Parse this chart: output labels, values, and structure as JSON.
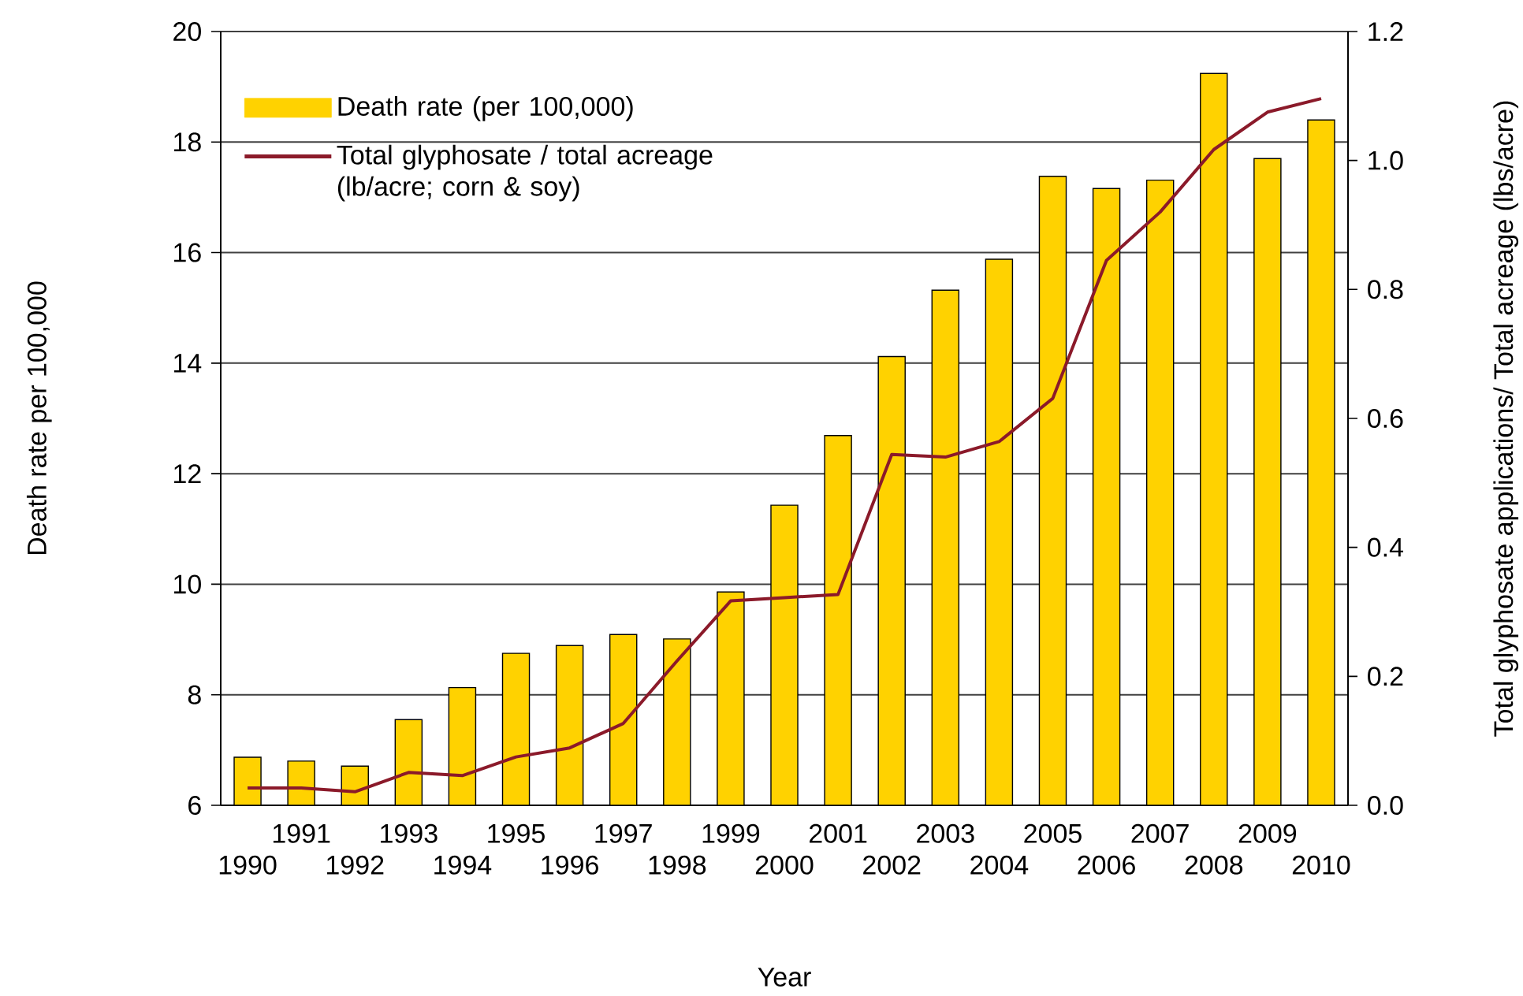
{
  "chart_data": {
    "type": "bar",
    "categories": [
      "1990",
      "1991",
      "1992",
      "1993",
      "1994",
      "1995",
      "1996",
      "1997",
      "1998",
      "1999",
      "2000",
      "2001",
      "2002",
      "2003",
      "2004",
      "2005",
      "2006",
      "2007",
      "2008",
      "2009",
      "2010"
    ],
    "series": [
      {
        "name": "Death rate (per 100,000)",
        "color": "#ffd200",
        "values": [
          6.87,
          6.8,
          6.71,
          7.55,
          8.13,
          8.75,
          8.89,
          9.09,
          9.01,
          9.86,
          11.43,
          12.69,
          14.12,
          15.32,
          15.88,
          17.38,
          17.16,
          17.31,
          19.24,
          17.7,
          18.4
        ]
      },
      {
        "name": "Total glyphosate / total acreage (lb/acre; corn & soy)",
        "type": "line",
        "axis": "y2",
        "color": "#8b1a2a",
        "values": [
          0.027,
          0.027,
          0.021,
          0.051,
          0.046,
          0.075,
          0.089,
          0.127,
          0.224,
          0.317,
          0.322,
          0.327,
          0.544,
          0.54,
          0.564,
          0.631,
          0.845,
          0.92,
          1.017,
          1.075,
          1.096
        ]
      }
    ],
    "xlabel": "Year",
    "ylabel": "Death rate  per 100,000",
    "y2label": "Total glyphosate applications/ Total acreage (lbs/acre)",
    "ylim": [
      6,
      20
    ],
    "yticks": [
      6,
      8,
      10,
      12,
      14,
      16,
      18,
      20
    ],
    "y2lim": [
      0,
      1.2
    ],
    "y2ticks": [
      {
        "value": 0,
        "label": "0.0"
      },
      0.2,
      0.4,
      0.6,
      0.8,
      {
        "value": 1.0,
        "label": "1.0"
      },
      1.2
    ],
    "grid": "y",
    "legend": "top left"
  }
}
